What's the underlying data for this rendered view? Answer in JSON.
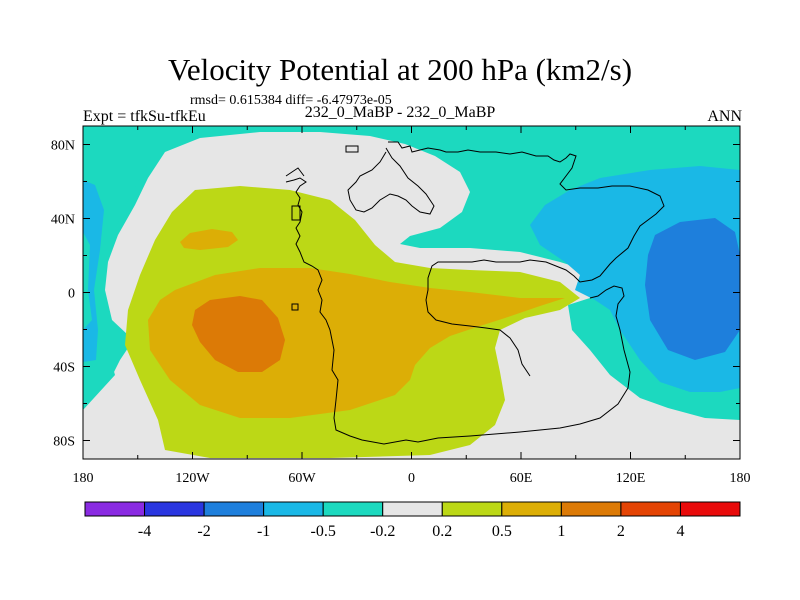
{
  "title": "Velocity Potential at 200 hPa (km2/s)",
  "subtitle": "rmsd= 0.615384 diff= -6.47973e-05",
  "left_string": "Expt = tfkSu-tfkEu",
  "center_string": "232_0_MaBP - 232_0_MaBP",
  "right_string": "ANN",
  "map": {
    "lon_ticks": [
      {
        "lon": -180,
        "label": "180"
      },
      {
        "lon": -120,
        "label": "120W"
      },
      {
        "lon": -60,
        "label": "60W"
      },
      {
        "lon": 0,
        "label": "0"
      },
      {
        "lon": 60,
        "label": "60E"
      },
      {
        "lon": 120,
        "label": "120E"
      },
      {
        "lon": 180,
        "label": "180"
      }
    ],
    "lat_ticks": [
      {
        "lat": 80,
        "label": "80N"
      },
      {
        "lat": 40,
        "label": "40N"
      },
      {
        "lat": 0,
        "label": "0"
      },
      {
        "lat": -40,
        "label": "40S"
      },
      {
        "lat": -80,
        "label": "80S"
      }
    ]
  },
  "colorbar": {
    "colors": [
      "#8a2be2",
      "#2a36e0",
      "#1e7fdc",
      "#1ab8e6",
      "#1cd9bf",
      "#e6e6e6",
      "#bcd816",
      "#dcae06",
      "#dc7a06",
      "#e44404",
      "#e80a0a"
    ],
    "labels": [
      "-4",
      "-2",
      "-1",
      "-0.5",
      "-0.2",
      "0.2",
      "0.5",
      "1",
      "2",
      "4"
    ]
  }
}
